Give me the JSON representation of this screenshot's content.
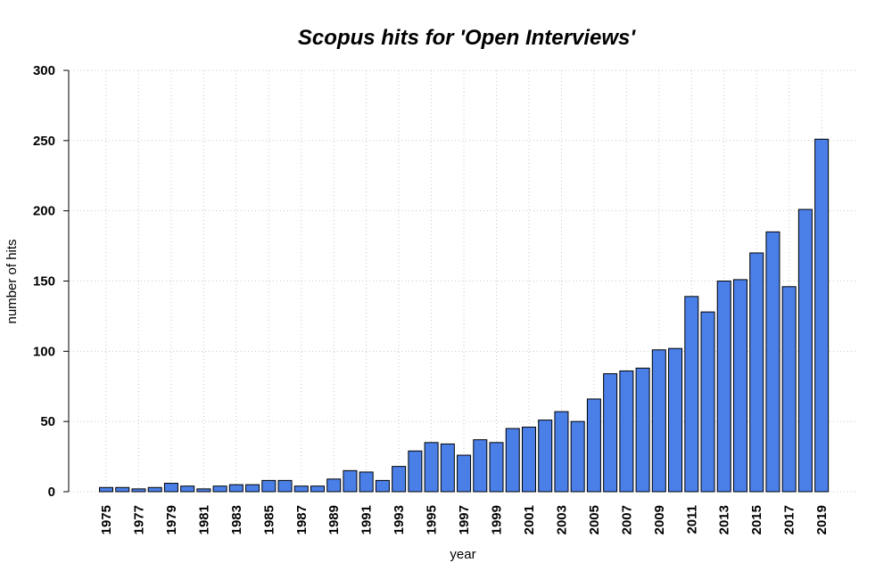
{
  "chart_data": {
    "type": "bar",
    "title": "Scopus hits for 'Open Interviews'",
    "xlabel": "year",
    "ylabel": "number of hits",
    "ylim": [
      0,
      300
    ],
    "yticks": [
      0,
      50,
      100,
      150,
      200,
      250,
      300
    ],
    "grid": true,
    "bar_color": "#4a7fe8",
    "categories": [
      "1975",
      "1976",
      "1977",
      "1978",
      "1979",
      "1980",
      "1981",
      "1982",
      "1983",
      "1984",
      "1985",
      "1986",
      "1987",
      "1988",
      "1989",
      "1990",
      "1991",
      "1992",
      "1993",
      "1994",
      "1995",
      "1996",
      "1997",
      "1998",
      "1999",
      "2000",
      "2001",
      "2002",
      "2003",
      "2004",
      "2005",
      "2006",
      "2007",
      "2008",
      "2009",
      "2010",
      "2011",
      "2012",
      "2013",
      "2014",
      "2015",
      "2016",
      "2017",
      "2018",
      "2019"
    ],
    "tick_labels": [
      "1975",
      "1977",
      "1979",
      "1981",
      "1983",
      "1985",
      "1987",
      "1989",
      "1991",
      "1993",
      "1995",
      "1997",
      "1999",
      "2001",
      "2003",
      "2005",
      "2007",
      "2009",
      "2011",
      "2013",
      "2015",
      "2017",
      "2019"
    ],
    "values": [
      3,
      3,
      2,
      3,
      6,
      4,
      2,
      4,
      5,
      5,
      8,
      8,
      4,
      4,
      9,
      15,
      14,
      8,
      18,
      29,
      35,
      34,
      26,
      37,
      35,
      45,
      46,
      51,
      57,
      50,
      66,
      84,
      86,
      88,
      101,
      102,
      139,
      128,
      150,
      151,
      170,
      185,
      146,
      201,
      251
    ]
  }
}
